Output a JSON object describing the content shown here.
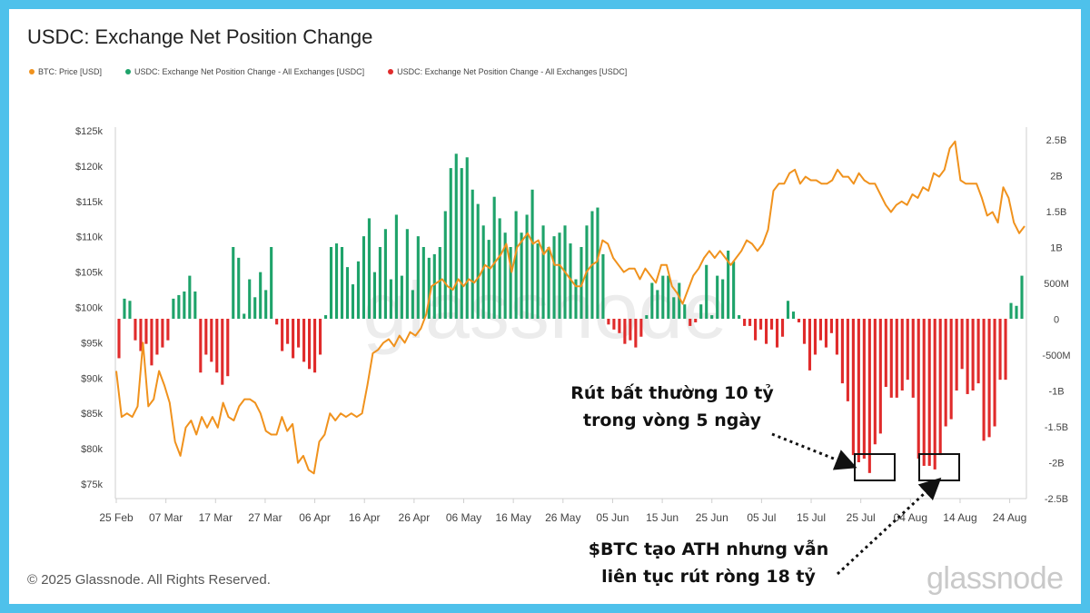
{
  "header": {
    "title": "USDC: Exchange Net Position Change"
  },
  "legend": [
    {
      "label": "BTC: Price [USD]",
      "color": "#f0921d"
    },
    {
      "label": "USDC: Exchange Net Position Change - All Exchanges [USDC]",
      "color": "#1ea36a"
    },
    {
      "label": "USDC: Exchange Net Position Change - All Exchanges [USDC]",
      "color": "#e02b2b"
    }
  ],
  "footer": {
    "copyright": "© 2025 Glassnode. All Rights Reserved.",
    "logo": "glassnode"
  },
  "watermark": "glassnode",
  "annotations": [
    {
      "line1": "Rút bất thường 10 tỷ",
      "line2": "trong vòng 5 ngày"
    },
    {
      "line1": "$BTC tạo ATH nhưng vẫn",
      "line2": "liên tục rút ròng 18 tỷ"
    }
  ],
  "chart_data": {
    "type": "bar",
    "title": "USDC: Exchange Net Position Change",
    "x_ticks": [
      "25 Feb",
      "07 Mar",
      "17 Mar",
      "27 Mar",
      "06 Apr",
      "16 Apr",
      "26 Apr",
      "06 May",
      "16 May",
      "26 May",
      "05 Jun",
      "15 Jun",
      "25 Jun",
      "05 Jul",
      "15 Jul",
      "25 Jul",
      "04 Aug",
      "14 Aug",
      "24 Aug"
    ],
    "y_left_ticks": [
      "$125k",
      "$120k",
      "$115k",
      "$110k",
      "$105k",
      "$100k",
      "$95k",
      "$90k",
      "$85k",
      "$80k",
      "$75k"
    ],
    "y_left_range": [
      72000,
      127000
    ],
    "y_right_ticks": [
      "2.5B",
      "2B",
      "1.5B",
      "1B",
      "500M",
      "0",
      "-500M",
      "-1B",
      "-1.5B",
      "-2B",
      "-2.5B"
    ],
    "y_right_range": [
      -2.5,
      2.5
    ],
    "y_right_unit": "B",
    "x_range_days": [
      0,
      183
    ],
    "grid": false,
    "legend_position": "top-left",
    "series": [
      {
        "name": "USDC: Exchange Net Position Change - All Exchanges [USDC]",
        "type": "bar",
        "values": [
          -0.55,
          0.28,
          0.25,
          -0.3,
          -0.45,
          -0.35,
          -0.65,
          -0.5,
          -0.4,
          -0.3,
          0.28,
          0.33,
          0.38,
          0.6,
          0.38,
          -0.75,
          -0.5,
          -0.6,
          -0.75,
          -0.92,
          -0.8,
          1.0,
          0.85,
          0.07,
          0.55,
          0.3,
          0.65,
          0.4,
          1.0,
          -0.08,
          -0.45,
          -0.35,
          -0.55,
          -0.4,
          -0.6,
          -0.7,
          -0.75,
          -0.5,
          0.05,
          1.0,
          1.05,
          1.0,
          0.72,
          0.48,
          0.8,
          1.15,
          1.4,
          0.65,
          1.0,
          1.25,
          0.55,
          1.45,
          0.6,
          1.25,
          0.4,
          1.15,
          1.0,
          0.85,
          0.9,
          1.0,
          1.5,
          2.1,
          2.3,
          2.1,
          2.25,
          1.8,
          1.6,
          1.3,
          1.1,
          1.7,
          1.4,
          1.2,
          1.0,
          1.5,
          1.2,
          1.45,
          1.8,
          1.05,
          1.3,
          1.0,
          1.15,
          1.2,
          1.3,
          1.05,
          0.55,
          1.0,
          1.3,
          1.5,
          1.55,
          0.9,
          -0.08,
          -0.15,
          -0.2,
          -0.35,
          -0.3,
          -0.4,
          -0.25,
          0.05,
          0.5,
          0.4,
          0.6,
          0.6,
          0.3,
          0.5,
          0.2,
          -0.1,
          -0.05,
          0.2,
          0.75,
          0.05,
          0.6,
          0.55,
          0.95,
          0.8,
          0.05,
          -0.1,
          -0.1,
          -0.3,
          -0.15,
          -0.35,
          -0.15,
          -0.4,
          -0.25,
          0.25,
          0.1,
          -0.05,
          -0.35,
          -0.72,
          -0.5,
          -0.3,
          -0.4,
          -0.2,
          -0.5,
          -0.9,
          -1.15,
          -1.9,
          -2.0,
          -1.95,
          -2.15,
          -1.75,
          -1.6,
          -0.95,
          -1.1,
          -1.1,
          -1.0,
          -0.85,
          -1.1,
          -1.95,
          -2.05,
          -2.05,
          -2.1,
          -1.9,
          -1.5,
          -1.4,
          -1.0,
          -0.7,
          -1.05,
          -1.0,
          -0.9,
          -1.7,
          -1.65,
          -1.5,
          -0.85,
          -0.85,
          0.22,
          0.18,
          0.6
        ]
      },
      {
        "name": "BTC: Price [USD]",
        "type": "line",
        "values": [
          91000,
          84500,
          85000,
          84500,
          86000,
          95000,
          86000,
          87000,
          91000,
          89000,
          86500,
          81000,
          79000,
          83000,
          84000,
          82000,
          84500,
          83000,
          84500,
          83000,
          86500,
          84500,
          84000,
          86000,
          87000,
          87000,
          86500,
          85000,
          82500,
          82000,
          82000,
          84500,
          82500,
          83500,
          78000,
          79000,
          77000,
          76500,
          81000,
          82000,
          85000,
          84000,
          85000,
          84500,
          85000,
          84500,
          85000,
          89000,
          93500,
          94000,
          95000,
          95500,
          94500,
          96000,
          95000,
          96500,
          96000,
          97000,
          99000,
          103000,
          103500,
          104000,
          103000,
          102500,
          104000,
          103000,
          104000,
          103500,
          104500,
          106000,
          105500,
          106500,
          107500,
          109000,
          105000,
          108500,
          109500,
          110500,
          109000,
          109500,
          107500,
          108500,
          106000,
          106000,
          105000,
          104000,
          103000,
          103000,
          105000,
          106000,
          106500,
          109500,
          109000,
          107000,
          106000,
          105000,
          105500,
          105500,
          104000,
          105500,
          104500,
          103500,
          106000,
          106000,
          103000,
          102000,
          100500,
          102500,
          104500,
          105500,
          107000,
          108000,
          107000,
          108000,
          107000,
          106000,
          107000,
          108000,
          109500,
          109000,
          108000,
          109000,
          111000,
          116500,
          117500,
          117500,
          119000,
          119500,
          117500,
          118500,
          118000,
          118000,
          117500,
          117500,
          118000,
          119500,
          118500,
          118500,
          117500,
          119000,
          118000,
          117500,
          117500,
          116000,
          114500,
          113500,
          114500,
          115000,
          114500,
          116000,
          115500,
          117000,
          116500,
          119000,
          118500,
          119500,
          122500,
          123500,
          118000,
          117500,
          117500,
          117500,
          115500,
          113000,
          113500,
          112000,
          117000,
          115500,
          112000,
          110500,
          111500
        ]
      }
    ]
  }
}
